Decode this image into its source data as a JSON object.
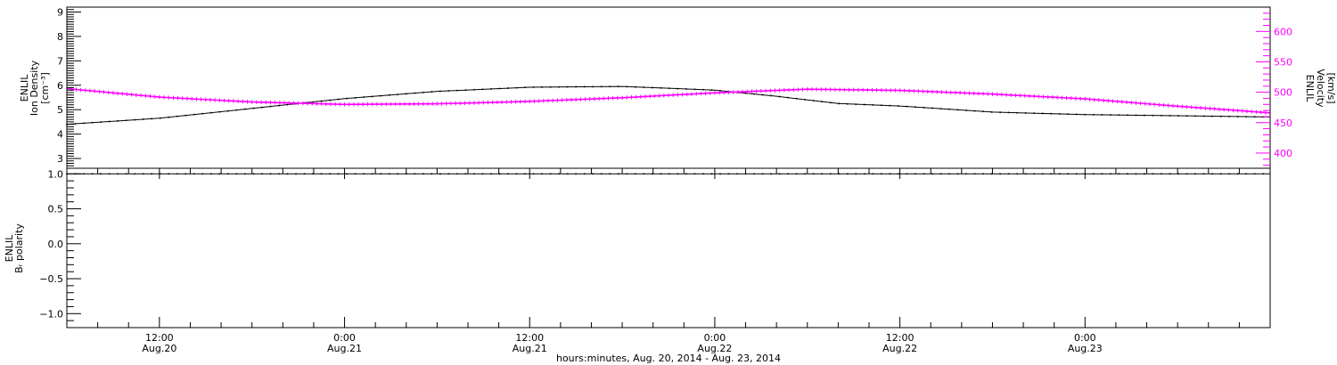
{
  "colors": {
    "axis": "#000000",
    "density": "#000000",
    "velocity": "#ff00ff",
    "polarity": "#000000",
    "background": "#ffffff"
  },
  "x_axis": {
    "title": "hours:minutes, Aug. 20, 2014 - Aug. 23, 2014",
    "range_hours": [
      0,
      78
    ],
    "ticks": [
      {
        "hours": 6,
        "time": "12:00",
        "date": "Aug.20"
      },
      {
        "hours": 18,
        "time": "0:00",
        "date": "Aug.21"
      },
      {
        "hours": 30,
        "time": "12:00",
        "date": "Aug.21"
      },
      {
        "hours": 42,
        "time": "0:00",
        "date": "Aug.22"
      },
      {
        "hours": 54,
        "time": "12:00",
        "date": "Aug.22"
      },
      {
        "hours": 66,
        "time": "0:00",
        "date": "Aug.23"
      }
    ]
  },
  "panels": {
    "top": {
      "left_axis": {
        "label_lines": [
          "ENLIL",
          "Ion Density"
        ],
        "unit": "[cm⁻³]",
        "range": [
          2.6,
          9.2
        ],
        "ticks": [
          "3",
          "4",
          "5",
          "6",
          "7",
          "8",
          "9"
        ]
      },
      "right_axis": {
        "label_lines": [
          "ENLIL",
          "Velocity"
        ],
        "unit": "[km/s]",
        "range": [
          375,
          640
        ],
        "ticks": [
          "400",
          "450",
          "500",
          "550",
          "600"
        ]
      }
    },
    "bottom": {
      "left_axis": {
        "label_lines": [
          "ENLIL",
          "Bᵣ polarity"
        ],
        "range": [
          -1.2,
          1.08
        ],
        "ticks": [
          "1.0",
          "0.5",
          "0.0",
          "−0.5",
          "−1.0"
        ]
      }
    }
  },
  "chart_data": {
    "type": "line",
    "x_unit": "hours since Aug. 20, 2014 06:00",
    "series": [
      {
        "panel": "top",
        "axis": "left",
        "color": "#000000",
        "x": [
          0,
          6,
          12,
          18,
          24,
          30,
          36,
          42,
          46,
          50,
          54,
          60,
          66,
          72,
          78
        ],
        "y": [
          4.4,
          4.65,
          5.05,
          5.45,
          5.75,
          5.92,
          5.95,
          5.8,
          5.55,
          5.25,
          5.15,
          4.9,
          4.8,
          4.75,
          4.7
        ]
      },
      {
        "panel": "top",
        "axis": "right",
        "color": "#ff00ff",
        "x": [
          0,
          6,
          12,
          18,
          24,
          30,
          36,
          42,
          48,
          54,
          60,
          66,
          72,
          78
        ],
        "y": [
          506,
          492,
          484,
          480,
          481,
          485,
          491,
          499,
          505,
          503,
          497,
          489,
          477,
          466
        ]
      },
      {
        "panel": "bottom",
        "axis": "left",
        "color": "#000000",
        "x": [
          0,
          78
        ],
        "y": [
          1.0,
          1.0
        ]
      }
    ]
  }
}
